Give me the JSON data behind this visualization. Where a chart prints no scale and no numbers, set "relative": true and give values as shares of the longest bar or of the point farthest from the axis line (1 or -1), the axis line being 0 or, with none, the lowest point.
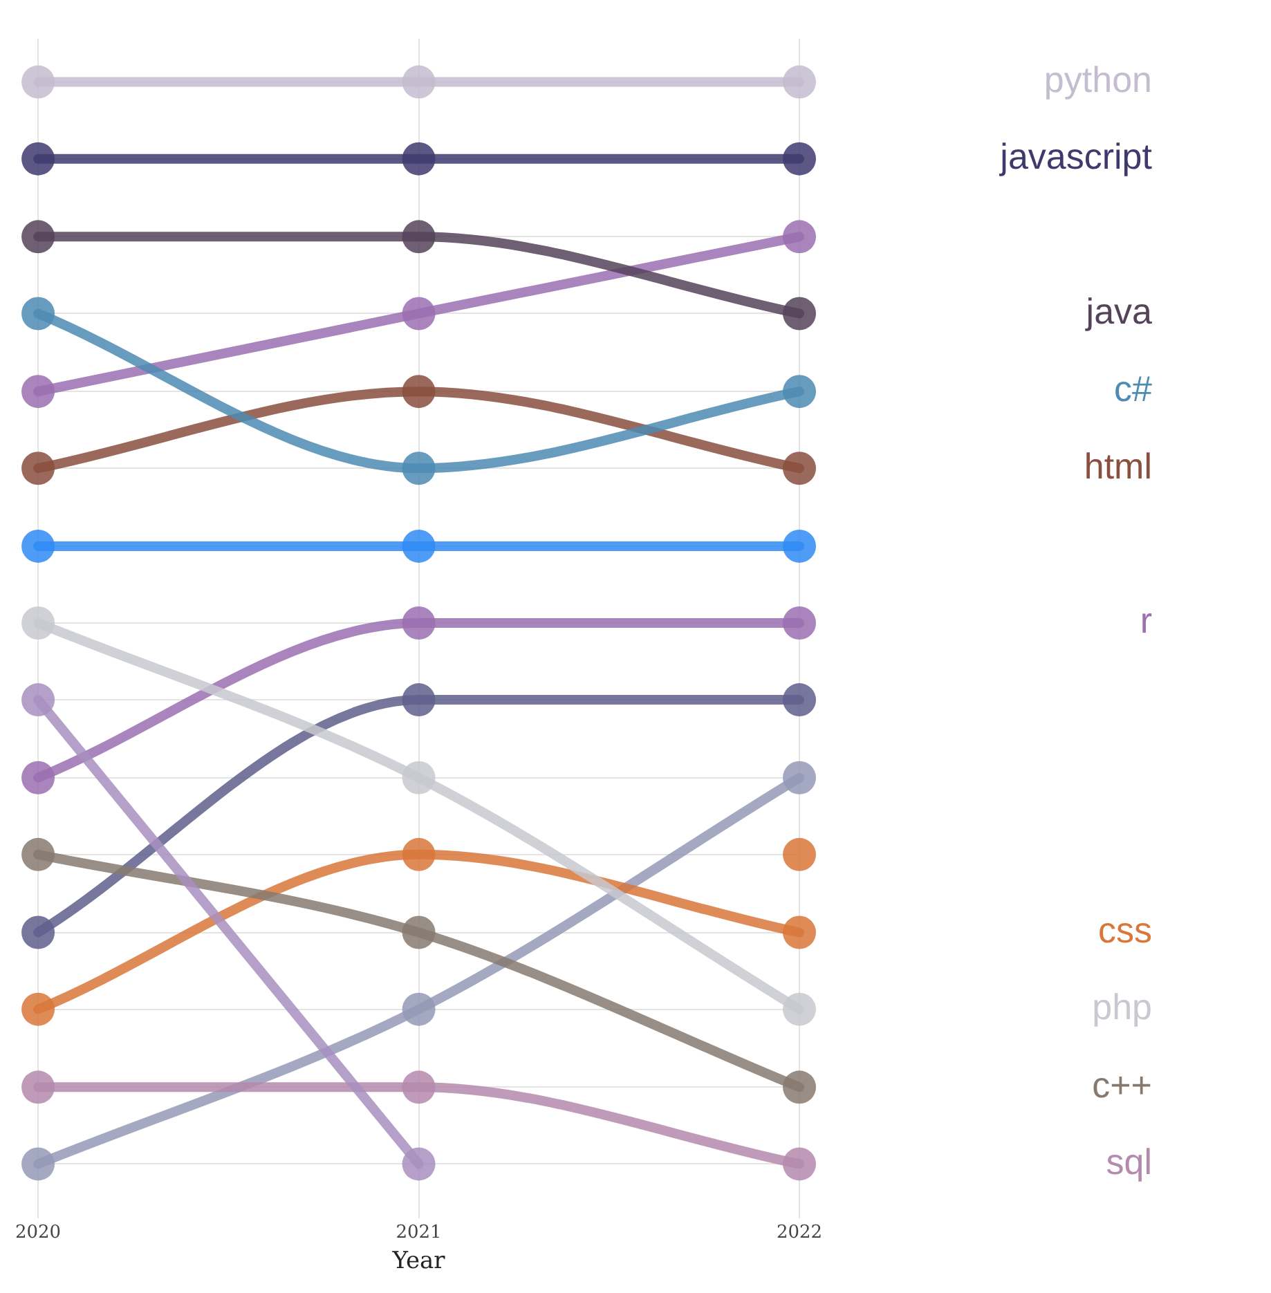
{
  "chart_data": {
    "type": "line",
    "relative": true,
    "categories": [
      "2020",
      "2021",
      "2022"
    ],
    "xlabel": "Year",
    "grid": true,
    "legend": false,
    "marker": "circle",
    "line_style": "solid",
    "series": [
      {
        "name": "python",
        "color": "#c4bccf",
        "values": [
          1,
          1,
          1
        ]
      },
      {
        "name": "javascript",
        "color": "#3f3a6e",
        "values": [
          0.929,
          0.929,
          0.929
        ]
      },
      {
        "name": "java",
        "color": "#55435a",
        "values": [
          0.857,
          0.857,
          0.786
        ]
      },
      {
        "name": "c#",
        "color": "#4e8bb3",
        "values": [
          0.786,
          0.643,
          0.714
        ]
      },
      {
        "color": "#9b6fb0",
        "values": [
          0.714,
          0.786,
          0.857
        ]
      },
      {
        "name": "html",
        "color": "#8a4f3e",
        "values": [
          0.643,
          0.714,
          0.643
        ]
      },
      {
        "color": "#2f8bf5",
        "values": [
          0.571,
          0.571,
          0.571
        ]
      },
      {
        "name": "php",
        "color": "#c8c8d0",
        "values": [
          0.5,
          0.357,
          0.143
        ]
      },
      {
        "color": "#a88fc0",
        "values": [
          0.429,
          0,
          null
        ]
      },
      {
        "name": "r",
        "color": "#9b6fb0",
        "values": [
          0.357,
          0.5,
          0.5
        ]
      },
      {
        "name": "c++",
        "color": "#867a70",
        "values": [
          0.286,
          0.214,
          0.071
        ]
      },
      {
        "color": "#5f5f8d",
        "values": [
          0.214,
          0.429,
          0.429
        ]
      },
      {
        "name": "css",
        "color": "#d9773a",
        "values": [
          0.143,
          0.286,
          0.214
        ]
      },
      {
        "name": "sql",
        "color": "#b48aad",
        "values": [
          0.071,
          0.071,
          0
        ]
      },
      {
        "color": "#9499b5",
        "values": [
          0,
          0.143,
          0.357
        ]
      },
      {
        "color": "#d9773a",
        "values": [
          null,
          null,
          0.286
        ]
      }
    ]
  }
}
